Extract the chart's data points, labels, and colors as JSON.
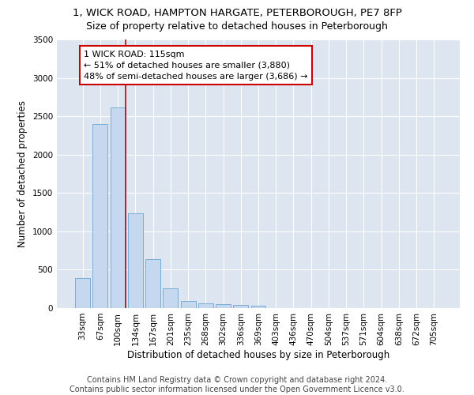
{
  "title_line1": "1, WICK ROAD, HAMPTON HARGATE, PETERBOROUGH, PE7 8FP",
  "title_line2": "Size of property relative to detached houses in Peterborough",
  "xlabel": "Distribution of detached houses by size in Peterborough",
  "ylabel": "Number of detached properties",
  "bar_color": "#c5d8f0",
  "bar_edge_color": "#7aadd4",
  "background_color": "#dde6f0",
  "grid_color": "#ffffff",
  "fig_background": "#ffffff",
  "categories": [
    "33sqm",
    "67sqm",
    "100sqm",
    "134sqm",
    "167sqm",
    "201sqm",
    "235sqm",
    "268sqm",
    "302sqm",
    "336sqm",
    "369sqm",
    "403sqm",
    "436sqm",
    "470sqm",
    "504sqm",
    "537sqm",
    "571sqm",
    "604sqm",
    "638sqm",
    "672sqm",
    "705sqm"
  ],
  "values": [
    390,
    2400,
    2610,
    1240,
    640,
    260,
    95,
    60,
    55,
    45,
    35,
    0,
    0,
    0,
    0,
    0,
    0,
    0,
    0,
    0,
    0
  ],
  "annotation_line1": "1 WICK ROAD: 115sqm",
  "annotation_line2": "← 51% of detached houses are smaller (3,880)",
  "annotation_line3": "48% of semi-detached houses are larger (3,686) →",
  "vline_x_index": 2,
  "vline_color": "#cc0000",
  "ylim": [
    0,
    3500
  ],
  "yticks": [
    0,
    500,
    1000,
    1500,
    2000,
    2500,
    3000,
    3500
  ],
  "footer_text": "Contains HM Land Registry data © Crown copyright and database right 2024.\nContains public sector information licensed under the Open Government Licence v3.0.",
  "title_fontsize": 9.5,
  "subtitle_fontsize": 9,
  "axis_label_fontsize": 8.5,
  "tick_fontsize": 7.5,
  "annotation_fontsize": 8,
  "footer_fontsize": 7
}
